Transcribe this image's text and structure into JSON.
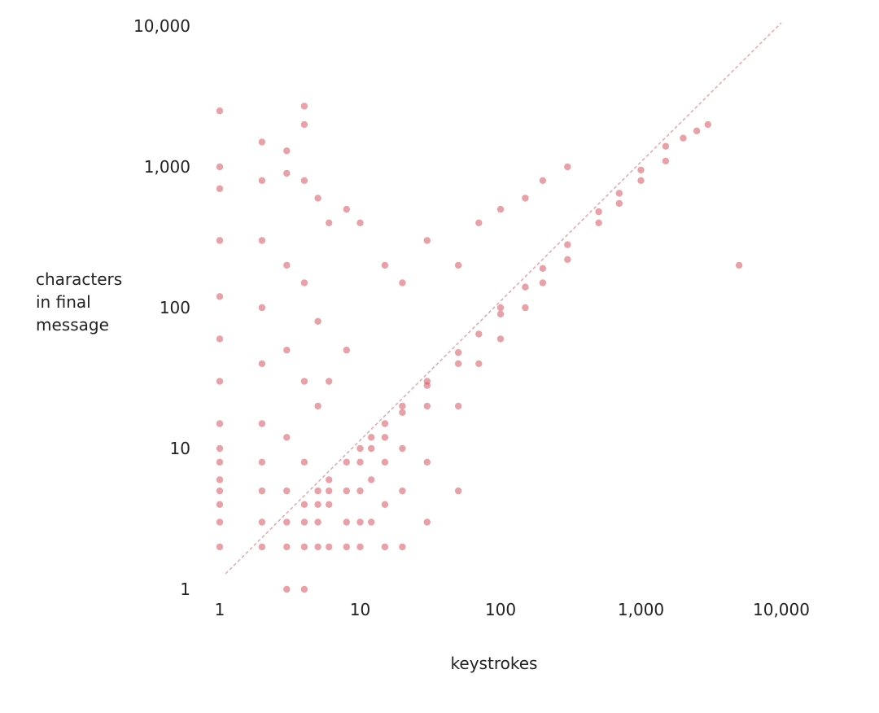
{
  "chart_data": {
    "type": "scatter",
    "title": "",
    "xlabel": "keystrokes",
    "ylabel_lines": [
      "characters",
      "in final",
      "message"
    ],
    "x_scale": "log",
    "y_scale": "log",
    "xlim": [
      1,
      10000
    ],
    "ylim": [
      1,
      10000
    ],
    "x_ticks": [
      1,
      10,
      100,
      1000,
      10000
    ],
    "x_tick_labels": [
      "1",
      "10",
      "100",
      "1,000",
      "10,000"
    ],
    "y_ticks": [
      1,
      10,
      100,
      1000,
      10000
    ],
    "y_tick_labels": [
      "1",
      "10",
      "100",
      "1,000",
      "10,000"
    ],
    "grid": false,
    "legend": "none",
    "reference_line": {
      "kind": "y=x",
      "style": "dashed"
    },
    "point_color": "#d9525e",
    "series": [
      {
        "points": [
          [
            1,
            2
          ],
          [
            1,
            3
          ],
          [
            1,
            4
          ],
          [
            1,
            5
          ],
          [
            1,
            6
          ],
          [
            1,
            8
          ],
          [
            1,
            10
          ],
          [
            1,
            15
          ],
          [
            1,
            30
          ],
          [
            1,
            60
          ],
          [
            1,
            120
          ],
          [
            1,
            300
          ],
          [
            1,
            700
          ],
          [
            1,
            1000
          ],
          [
            1,
            2500
          ],
          [
            2,
            2
          ],
          [
            2,
            3
          ],
          [
            2,
            5
          ],
          [
            2,
            8
          ],
          [
            2,
            15
          ],
          [
            2,
            40
          ],
          [
            2,
            100
          ],
          [
            2,
            300
          ],
          [
            2,
            800
          ],
          [
            2,
            1500
          ],
          [
            3,
            1
          ],
          [
            3,
            2
          ],
          [
            3,
            3
          ],
          [
            3,
            5
          ],
          [
            3,
            12
          ],
          [
            3,
            50
          ],
          [
            3,
            200
          ],
          [
            3,
            900
          ],
          [
            3,
            1300
          ],
          [
            4,
            1
          ],
          [
            4,
            2
          ],
          [
            4,
            3
          ],
          [
            4,
            4
          ],
          [
            4,
            8
          ],
          [
            4,
            30
          ],
          [
            4,
            150
          ],
          [
            4,
            800
          ],
          [
            4,
            2000
          ],
          [
            4,
            2700
          ],
          [
            5,
            2
          ],
          [
            5,
            3
          ],
          [
            5,
            4
          ],
          [
            5,
            5
          ],
          [
            5,
            20
          ],
          [
            5,
            80
          ],
          [
            5,
            600
          ],
          [
            6,
            2
          ],
          [
            6,
            4
          ],
          [
            6,
            5
          ],
          [
            6,
            6
          ],
          [
            6,
            30
          ],
          [
            6,
            400
          ],
          [
            8,
            2
          ],
          [
            8,
            3
          ],
          [
            8,
            5
          ],
          [
            8,
            8
          ],
          [
            8,
            50
          ],
          [
            8,
            500
          ],
          [
            10,
            2
          ],
          [
            10,
            3
          ],
          [
            10,
            5
          ],
          [
            10,
            8
          ],
          [
            10,
            10
          ],
          [
            10,
            400
          ],
          [
            12,
            3
          ],
          [
            12,
            6
          ],
          [
            12,
            10
          ],
          [
            12,
            12
          ],
          [
            15,
            2
          ],
          [
            15,
            4
          ],
          [
            15,
            8
          ],
          [
            15,
            12
          ],
          [
            15,
            15
          ],
          [
            15,
            200
          ],
          [
            20,
            2
          ],
          [
            20,
            5
          ],
          [
            20,
            10
          ],
          [
            20,
            18
          ],
          [
            20,
            20
          ],
          [
            20,
            150
          ],
          [
            30,
            3
          ],
          [
            30,
            8
          ],
          [
            30,
            20
          ],
          [
            30,
            28
          ],
          [
            30,
            30
          ],
          [
            30,
            300
          ],
          [
            50,
            5
          ],
          [
            50,
            20
          ],
          [
            50,
            40
          ],
          [
            50,
            48
          ],
          [
            50,
            200
          ],
          [
            70,
            40
          ],
          [
            70,
            65
          ],
          [
            70,
            400
          ],
          [
            100,
            60
          ],
          [
            100,
            90
          ],
          [
            100,
            100
          ],
          [
            100,
            500
          ],
          [
            150,
            100
          ],
          [
            150,
            140
          ],
          [
            150,
            600
          ],
          [
            200,
            150
          ],
          [
            200,
            190
          ],
          [
            200,
            800
          ],
          [
            300,
            220
          ],
          [
            300,
            280
          ],
          [
            300,
            1000
          ],
          [
            500,
            400
          ],
          [
            500,
            480
          ],
          [
            700,
            550
          ],
          [
            700,
            650
          ],
          [
            1000,
            800
          ],
          [
            1000,
            950
          ],
          [
            1500,
            1100
          ],
          [
            1500,
            1400
          ],
          [
            2000,
            1600
          ],
          [
            2500,
            1800
          ],
          [
            3000,
            2000
          ],
          [
            5000,
            200
          ]
        ]
      }
    ]
  }
}
